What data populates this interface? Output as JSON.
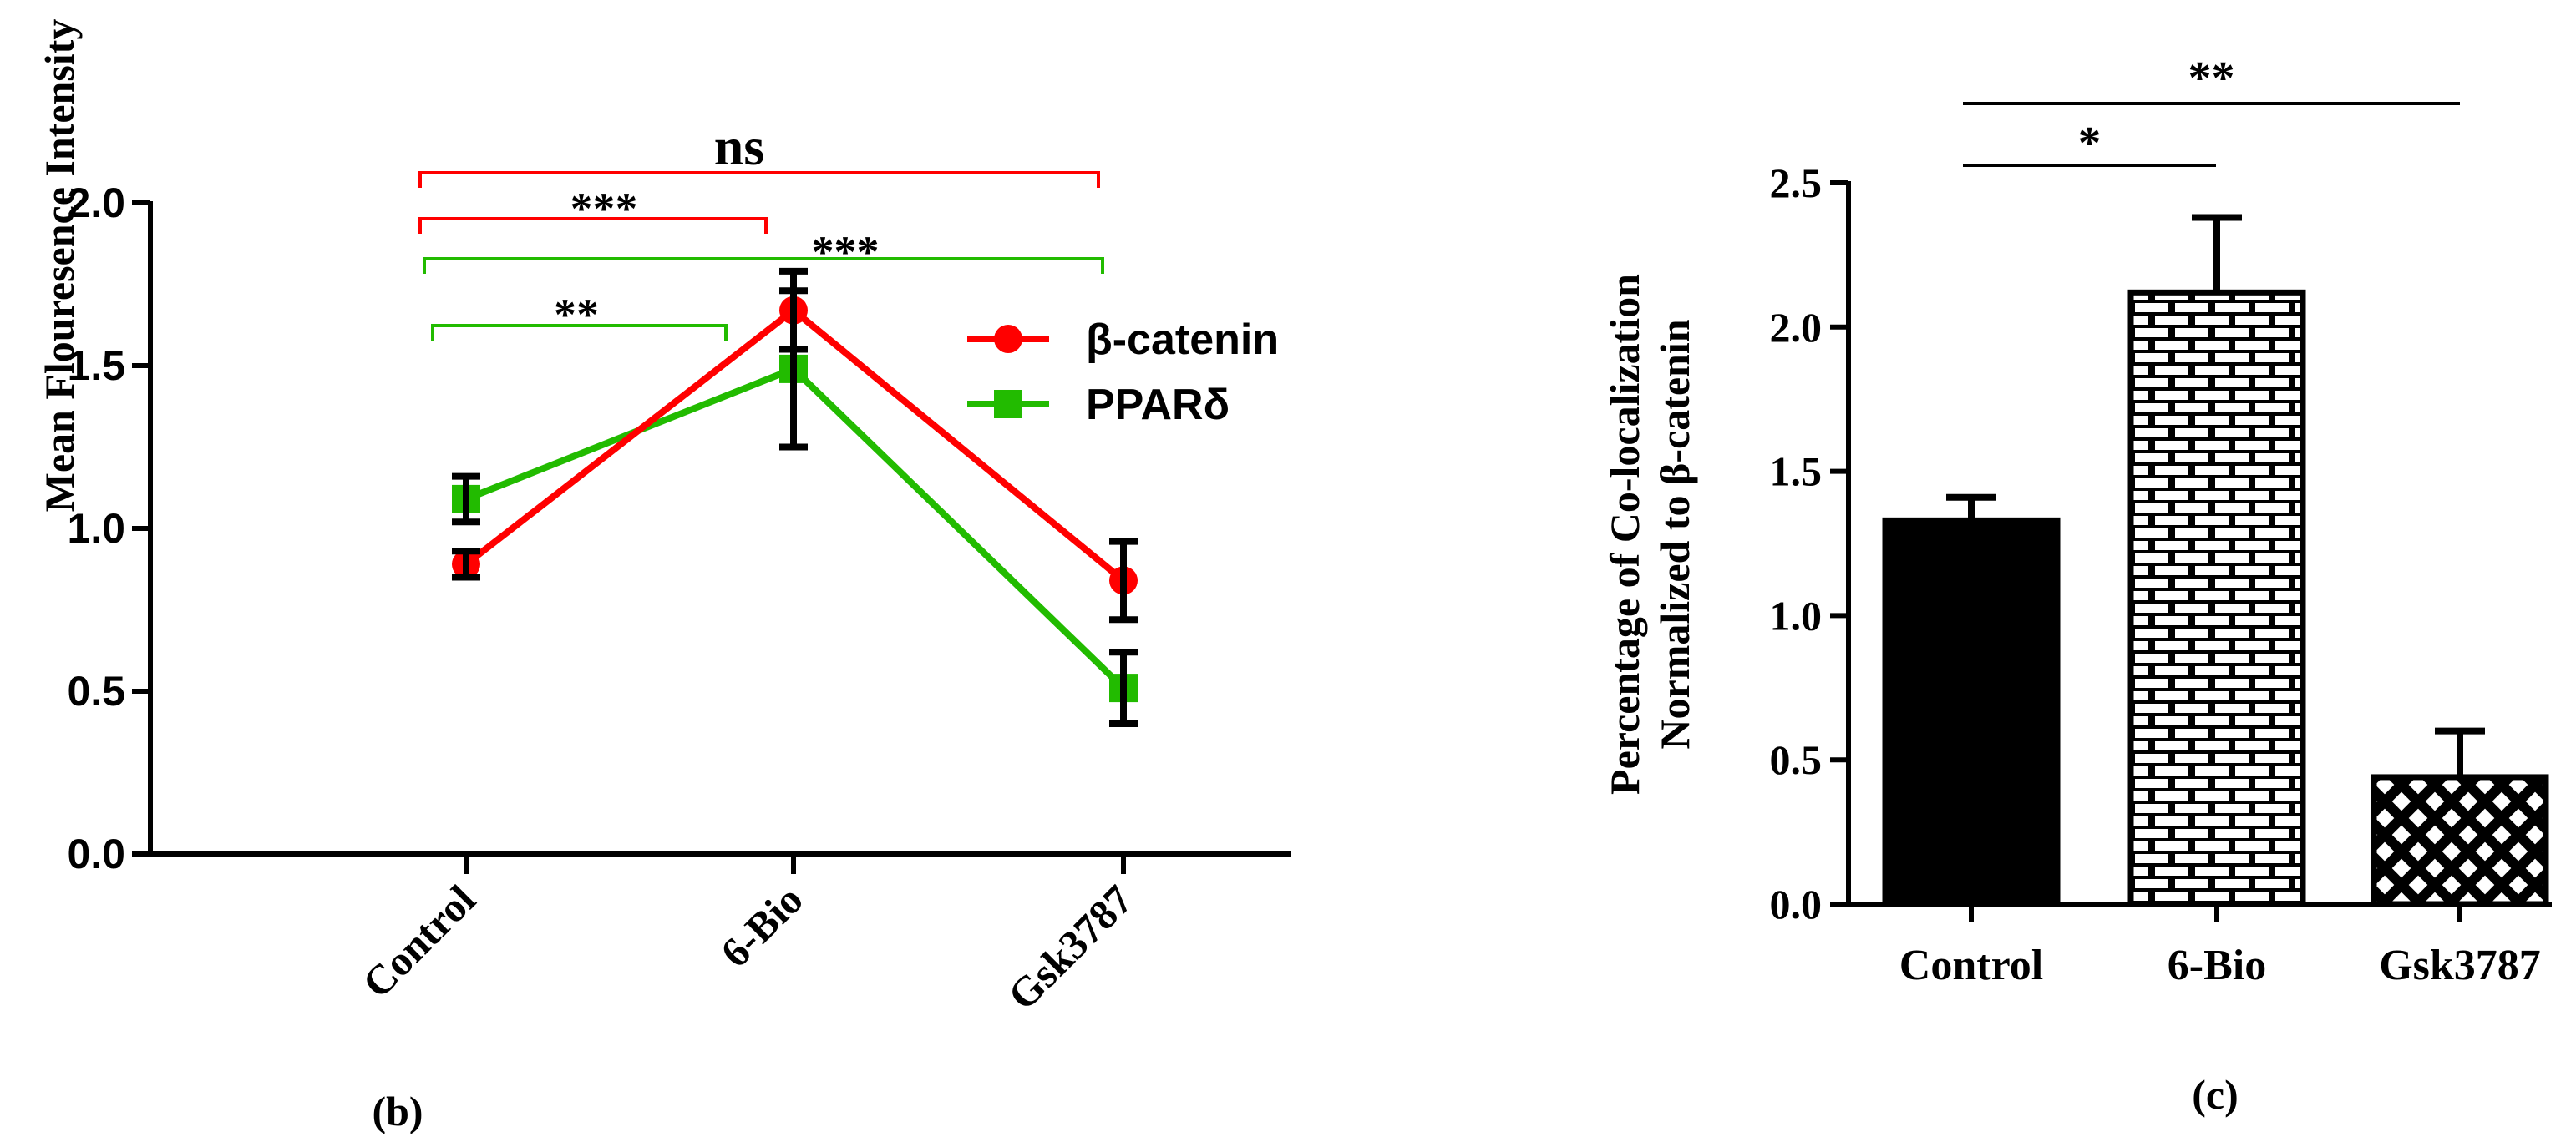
{
  "colors": {
    "beta": "#ff0000",
    "ppar": "#22bb00",
    "black": "#000000"
  },
  "chart_data": [
    {
      "type": "line",
      "panel_label": "(b)",
      "ylabel": "Mean Flouresence Intensity",
      "xlabel": "",
      "categories": [
        "Control",
        "6-Bio",
        "Gsk3787"
      ],
      "ylim": [
        0,
        2.0
      ],
      "yticks": [
        "0.0",
        "0.5",
        "1.0",
        "1.5",
        "2.0"
      ],
      "grid": false,
      "legend_position": "right",
      "series": [
        {
          "name": "β-catenin",
          "marker": "circle",
          "values": [
            0.89,
            1.67,
            0.84
          ],
          "errors": [
            0.04,
            0.12,
            0.12
          ]
        },
        {
          "name": "PPARδ",
          "marker": "square",
          "values": [
            1.09,
            1.49,
            0.51
          ],
          "errors": [
            0.07,
            0.24,
            0.11
          ]
        }
      ],
      "annotations": [
        {
          "from": "Control",
          "to": "Gsk3787",
          "label": "ns",
          "series": "β-catenin"
        },
        {
          "from": "Control",
          "to": "6-Bio",
          "label": "***",
          "series": "β-catenin"
        },
        {
          "from": "Control",
          "to": "Gsk3787",
          "label": "***",
          "series": "PPARδ"
        },
        {
          "from": "Control",
          "to": "6-Bio",
          "label": "**",
          "series": "PPARδ"
        }
      ]
    },
    {
      "type": "bar",
      "panel_label": "(c)",
      "ylabel": [
        "Percentage of Co-localization",
        "Normalized to β-catenin"
      ],
      "xlabel": "",
      "categories": [
        "Control",
        "6-Bio",
        "Gsk3787"
      ],
      "values": [
        1.33,
        2.12,
        0.44
      ],
      "errors": [
        0.08,
        0.26,
        0.16
      ],
      "patterns": [
        "solid",
        "brick",
        "crosshatch"
      ],
      "ylim": [
        0,
        2.5
      ],
      "yticks": [
        "0.0",
        "0.5",
        "1.0",
        "1.5",
        "2.0",
        "2.5"
      ],
      "grid": false,
      "annotations": [
        {
          "from": "Control",
          "to": "6-Bio",
          "label": "*"
        },
        {
          "from": "Control",
          "to": "Gsk3787",
          "label": "**"
        }
      ]
    }
  ]
}
